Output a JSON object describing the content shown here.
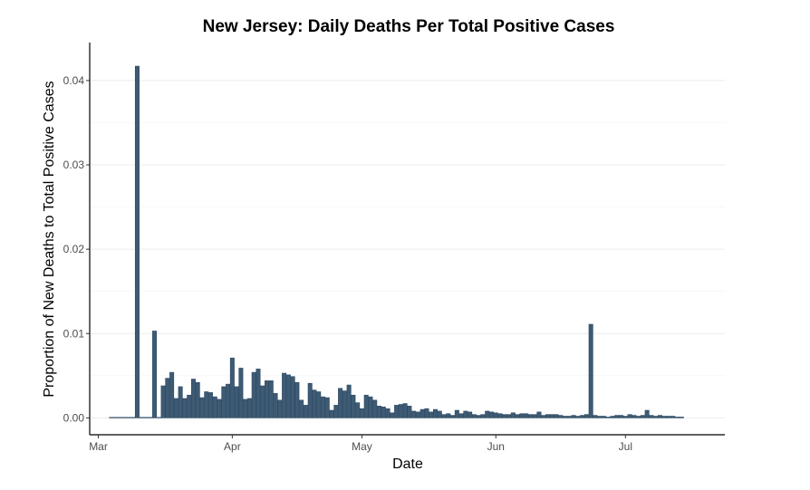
{
  "chart_data": {
    "type": "bar",
    "title": "New Jersey: Daily Deaths Per Total Positive Cases",
    "xlabel": "Date",
    "ylabel": "Proportion of New Deaths to Total Positive Cases",
    "ylim": [
      -0.002,
      0.0445
    ],
    "yticks": [
      0.0,
      0.01,
      0.02,
      0.03,
      0.04
    ],
    "ytick_labels": [
      "0.00",
      "0.01",
      "0.02",
      "0.03",
      "0.04"
    ],
    "xlim": [
      "2020-02-28",
      "2020-07-24"
    ],
    "xticks": [
      "2020-03-01",
      "2020-04-01",
      "2020-05-01",
      "2020-06-01",
      "2020-07-01"
    ],
    "xtick_labels": [
      "Mar",
      "Apr",
      "May",
      "Jun",
      "Jul"
    ],
    "grid": true,
    "bar_color": "#3f5a73",
    "bar_edge_color": "#2b4a66",
    "x": [
      "2020-03-04",
      "2020-03-05",
      "2020-03-06",
      "2020-03-07",
      "2020-03-08",
      "2020-03-09",
      "2020-03-10",
      "2020-03-11",
      "2020-03-12",
      "2020-03-13",
      "2020-03-14",
      "2020-03-15",
      "2020-03-16",
      "2020-03-17",
      "2020-03-18",
      "2020-03-19",
      "2020-03-20",
      "2020-03-21",
      "2020-03-22",
      "2020-03-23",
      "2020-03-24",
      "2020-03-25",
      "2020-03-26",
      "2020-03-27",
      "2020-03-28",
      "2020-03-29",
      "2020-03-30",
      "2020-03-31",
      "2020-04-01",
      "2020-04-02",
      "2020-04-03",
      "2020-04-04",
      "2020-04-05",
      "2020-04-06",
      "2020-04-07",
      "2020-04-08",
      "2020-04-09",
      "2020-04-10",
      "2020-04-11",
      "2020-04-12",
      "2020-04-13",
      "2020-04-14",
      "2020-04-15",
      "2020-04-16",
      "2020-04-17",
      "2020-04-18",
      "2020-04-19",
      "2020-04-20",
      "2020-04-21",
      "2020-04-22",
      "2020-04-23",
      "2020-04-24",
      "2020-04-25",
      "2020-04-26",
      "2020-04-27",
      "2020-04-28",
      "2020-04-29",
      "2020-04-30",
      "2020-05-01",
      "2020-05-02",
      "2020-05-03",
      "2020-05-04",
      "2020-05-05",
      "2020-05-06",
      "2020-05-07",
      "2020-05-08",
      "2020-05-09",
      "2020-05-10",
      "2020-05-11",
      "2020-05-12",
      "2020-05-13",
      "2020-05-14",
      "2020-05-15",
      "2020-05-16",
      "2020-05-17",
      "2020-05-18",
      "2020-05-19",
      "2020-05-20",
      "2020-05-21",
      "2020-05-22",
      "2020-05-23",
      "2020-05-24",
      "2020-05-25",
      "2020-05-26",
      "2020-05-27",
      "2020-05-28",
      "2020-05-29",
      "2020-05-30",
      "2020-05-31",
      "2020-06-01",
      "2020-06-02",
      "2020-06-03",
      "2020-06-04",
      "2020-06-05",
      "2020-06-06",
      "2020-06-07",
      "2020-06-08",
      "2020-06-09",
      "2020-06-10",
      "2020-06-11",
      "2020-06-12",
      "2020-06-13",
      "2020-06-14",
      "2020-06-15",
      "2020-06-16",
      "2020-06-17",
      "2020-06-18",
      "2020-06-19",
      "2020-06-20",
      "2020-06-21",
      "2020-06-22",
      "2020-06-23",
      "2020-06-24",
      "2020-06-25",
      "2020-06-26",
      "2020-06-27",
      "2020-06-28",
      "2020-06-29",
      "2020-06-30",
      "2020-07-01",
      "2020-07-02",
      "2020-07-03",
      "2020-07-04",
      "2020-07-05",
      "2020-07-06",
      "2020-07-07",
      "2020-07-08",
      "2020-07-09",
      "2020-07-10",
      "2020-07-11",
      "2020-07-12",
      "2020-07-13",
      "2020-07-14"
    ],
    "values": [
      0,
      0,
      0,
      0,
      0,
      0,
      0.0417,
      0,
      0,
      0,
      0.0103,
      0,
      0.0038,
      0.0047,
      0.0054,
      0.0023,
      0.0037,
      0.0023,
      0.0027,
      0.0046,
      0.0042,
      0.0024,
      0.0031,
      0.003,
      0.0025,
      0.0022,
      0.0037,
      0.004,
      0.0071,
      0.0037,
      0.0059,
      0.0022,
      0.0023,
      0.0054,
      0.0058,
      0.0038,
      0.0044,
      0.0044,
      0.0029,
      0.0021,
      0.0053,
      0.0051,
      0.0049,
      0.0042,
      0.0021,
      0.0015,
      0.0041,
      0.0033,
      0.0031,
      0.0025,
      0.0024,
      0.0009,
      0.0015,
      0.0035,
      0.0032,
      0.0039,
      0.0027,
      0.0018,
      0.0011,
      0.0027,
      0.0025,
      0.0021,
      0.0014,
      0.0013,
      0.0011,
      0.0006,
      0.0015,
      0.0016,
      0.0017,
      0.0014,
      0.0008,
      0.0007,
      0.001,
      0.0011,
      0.0007,
      0.001,
      0.0008,
      0.0004,
      0.0005,
      0.0003,
      0.0009,
      0.0005,
      0.0008,
      0.0007,
      0.0004,
      0.0003,
      0.0004,
      0.0008,
      0.0007,
      0.0006,
      0.0005,
      0.0004,
      0.0004,
      0.0006,
      0.0004,
      0.0005,
      0.0005,
      0.0004,
      0.0004,
      0.0007,
      0.0003,
      0.0004,
      0.0004,
      0.0004,
      0.0003,
      0.0002,
      0.0002,
      0.0003,
      0.0002,
      0.0003,
      0.0004,
      0.0111,
      0.0003,
      0.0002,
      0.0002,
      0.0001,
      0.0002,
      0.0003,
      0.0003,
      0.0002,
      0.0004,
      0.0003,
      0.0002,
      0.0003,
      0.0009,
      0.0003,
      0.0002,
      0.0003,
      0.0002,
      0.0002,
      0.0002,
      0.0001,
      0.0001
    ]
  }
}
